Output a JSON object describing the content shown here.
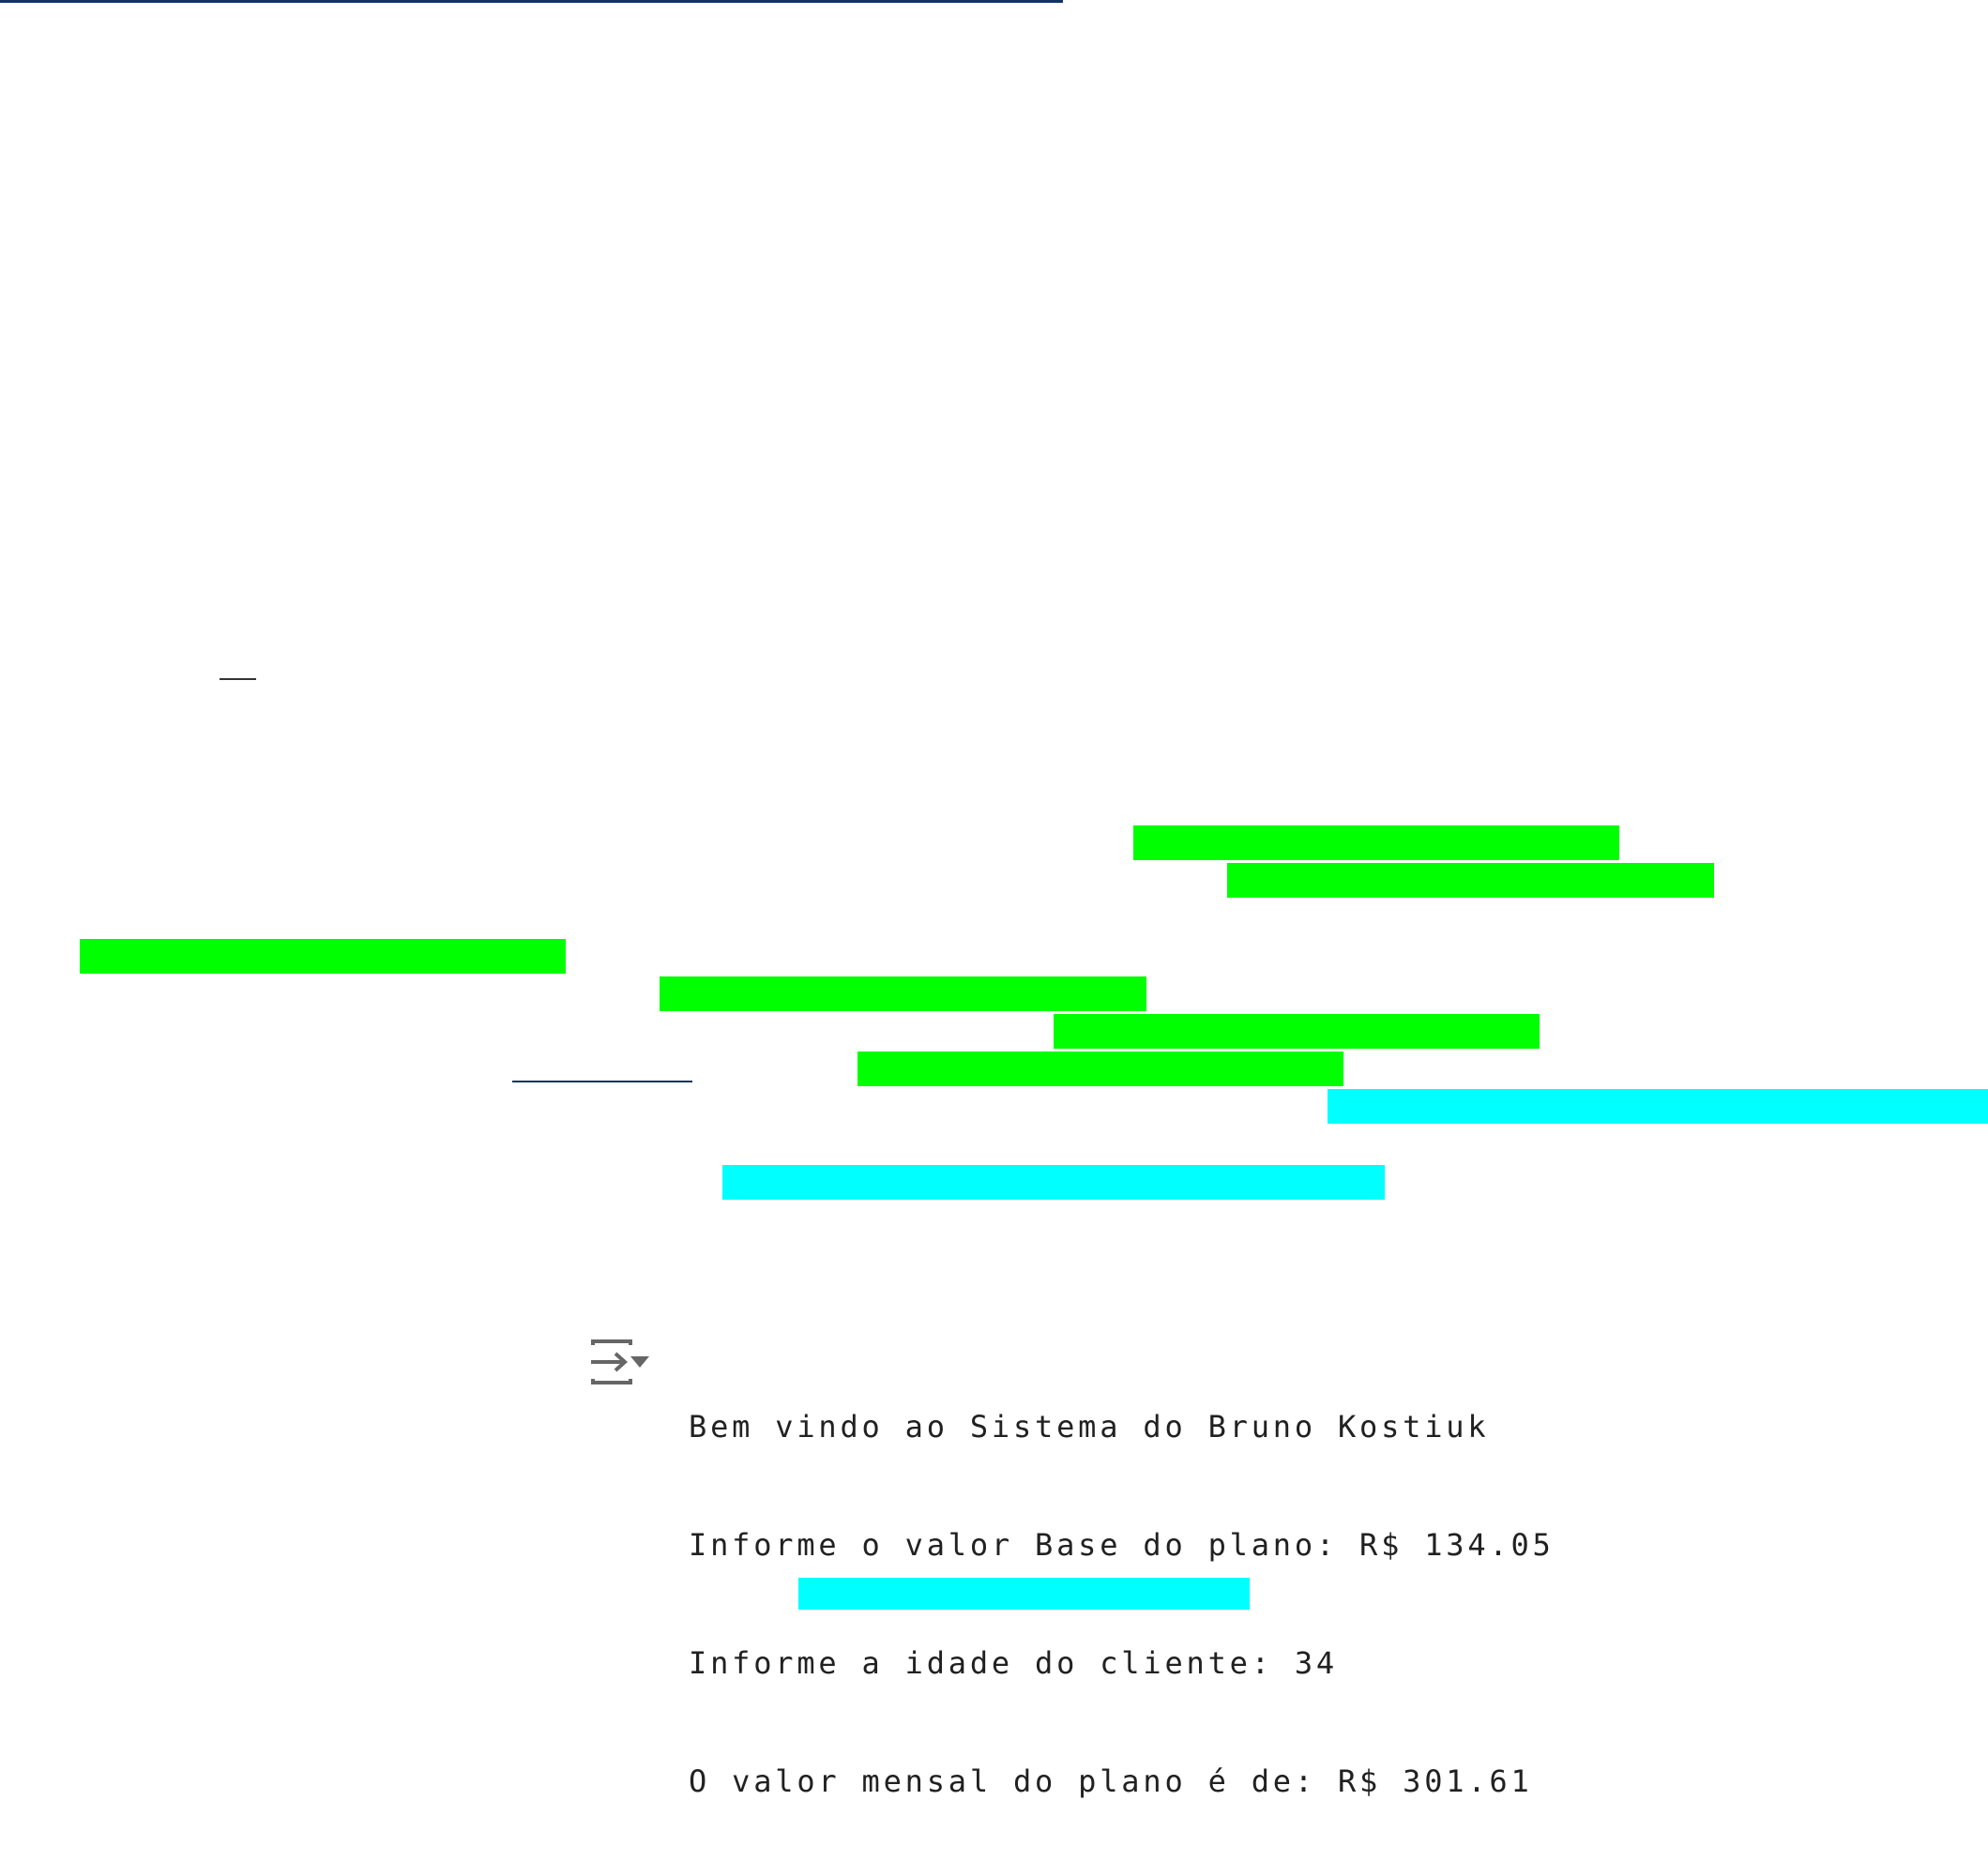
{
  "colors": {
    "top_bar": "#133366",
    "highlight_green": "#00ff00",
    "highlight_cyan": "#00ffff",
    "output_text": "#212121"
  },
  "output": {
    "icon": "output-toggle-icon",
    "lines": [
      "Bem vindo ao Sistema do Bruno Kostiuk",
      "Informe o valor Base do plano: R$ 134.05",
      "Informe a idade do cliente: 34",
      "O valor mensal do plano é de: R$ 301.61"
    ]
  }
}
